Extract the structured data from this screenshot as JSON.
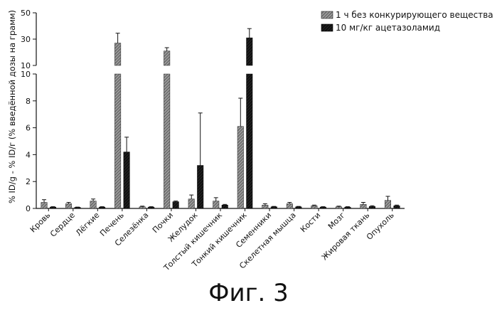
{
  "figure_caption": "Фиг. 3",
  "chart_data": {
    "type": "bar",
    "ylabel": "% ID/g - % ID/г (% введённой дозы на грамм)",
    "axis_break": {
      "lower_ylim": [
        0,
        10
      ],
      "upper_ylim": [
        10,
        50
      ]
    },
    "lower_yticks": [
      "0",
      "2",
      "4",
      "6",
      "8",
      "10"
    ],
    "upper_yticks": [
      "10",
      "30",
      "50"
    ],
    "categories": [
      "Кровь",
      "Сердце",
      "Лёгкие",
      "Печень",
      "Селезёнка",
      "Почки",
      "Желудок",
      "Толстый кишечник",
      "Тонкий кишечник",
      "Семенники",
      "Скелетная мышца",
      "Кости",
      "Мозг",
      "Жировая ткань",
      "Опухоль"
    ],
    "series": [
      {
        "name": "1 ч без конкурирующего вещества",
        "pattern": "hatch-light",
        "color": "#555555",
        "values": [
          0.45,
          0.35,
          0.55,
          27,
          0.12,
          21,
          0.7,
          0.55,
          6.1,
          0.25,
          0.35,
          0.2,
          0.12,
          0.3,
          0.6
        ],
        "errors": [
          0.2,
          0.1,
          0.15,
          7.5,
          0.05,
          2.5,
          0.3,
          0.25,
          2.1,
          0.1,
          0.1,
          0.05,
          0.05,
          0.15,
          0.3
        ]
      },
      {
        "name": "10 мг/кг ацетазоламид",
        "pattern": "dark",
        "color": "#1a1a1a",
        "values": [
          0.1,
          0.08,
          0.1,
          4.2,
          0.1,
          0.5,
          3.2,
          0.25,
          31,
          0.12,
          0.12,
          0.1,
          0.1,
          0.15,
          0.2
        ],
        "errors": [
          0.03,
          0.02,
          0.03,
          1.1,
          0.03,
          0.05,
          3.9,
          0.05,
          7,
          0.03,
          0.03,
          0.03,
          0.03,
          0.05,
          0.05
        ]
      }
    ],
    "legend_position": "top-right",
    "grid": false
  }
}
